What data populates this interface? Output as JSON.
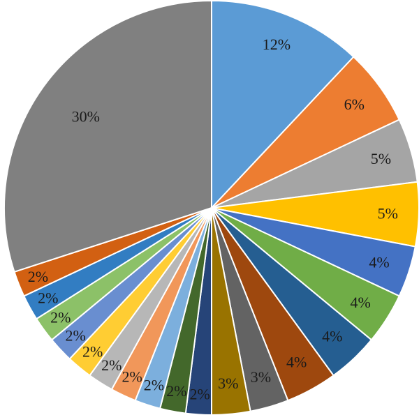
{
  "chart_data": {
    "type": "pie",
    "start_angle_deg": 0,
    "direction": "clockwise",
    "slices": [
      {
        "label": "12%",
        "value": 12,
        "color": "#5b9bd5"
      },
      {
        "label": "6%",
        "value": 6,
        "color": "#ed7d31"
      },
      {
        "label": "5%",
        "value": 5,
        "color": "#a5a5a5"
      },
      {
        "label": "5%",
        "value": 5,
        "color": "#ffc000"
      },
      {
        "label": "4%",
        "value": 4,
        "color": "#4472c4"
      },
      {
        "label": "4%",
        "value": 4,
        "color": "#70ad47"
      },
      {
        "label": "4%",
        "value": 4,
        "color": "#255e91"
      },
      {
        "label": "4%",
        "value": 4,
        "color": "#9e480e"
      },
      {
        "label": "3%",
        "value": 3,
        "color": "#636363"
      },
      {
        "label": "3%",
        "value": 3,
        "color": "#997300"
      },
      {
        "label": "2%",
        "value": 2,
        "color": "#264478"
      },
      {
        "label": "2%",
        "value": 2,
        "color": "#43682b"
      },
      {
        "label": "2%",
        "value": 2,
        "color": "#7cafdd"
      },
      {
        "label": "2%",
        "value": 2,
        "color": "#f1975a"
      },
      {
        "label": "2%",
        "value": 2,
        "color": "#b7b7b7"
      },
      {
        "label": "2%",
        "value": 2,
        "color": "#ffcd33"
      },
      {
        "label": "2%",
        "value": 2,
        "color": "#698ed0"
      },
      {
        "label": "2%",
        "value": 2,
        "color": "#8cc168"
      },
      {
        "label": "2%",
        "value": 2,
        "color": "#327dc2"
      },
      {
        "label": "2%",
        "value": 2,
        "color": "#d26012"
      },
      {
        "label": "30%",
        "value": 30,
        "color": "#808080"
      }
    ]
  }
}
